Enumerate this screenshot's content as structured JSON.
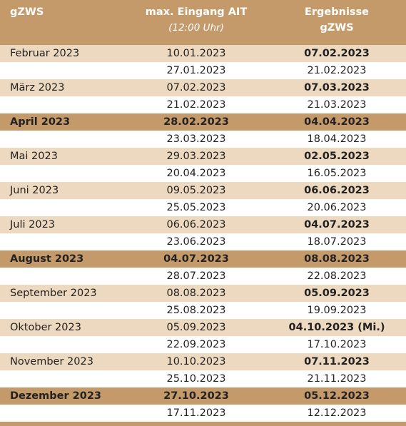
{
  "header": {
    "col1": "gZWS",
    "col2": "max. Eingang AIT",
    "col2_sub": "(12:00 Uhr)",
    "col3_line1": "Ergebnisse",
    "col3_line2": "gZWS"
  },
  "rows": [
    {
      "month": "Februar 2023",
      "highlight": false,
      "entries": [
        {
          "eingang": "10.01.2023",
          "ergebnis": "07.02.2023"
        },
        {
          "eingang": "27.01.2023",
          "ergebnis": "21.02.2023"
        }
      ]
    },
    {
      "month": "März 2023",
      "highlight": false,
      "entries": [
        {
          "eingang": "07.02.2023",
          "ergebnis": "07.03.2023"
        },
        {
          "eingang": "21.02.2023",
          "ergebnis": "21.03.2023"
        }
      ]
    },
    {
      "month": "April 2023",
      "highlight": true,
      "entries": [
        {
          "eingang": "28.02.2023",
          "ergebnis": "04.04.2023"
        },
        {
          "eingang": "23.03.2023",
          "ergebnis": "18.04.2023"
        }
      ]
    },
    {
      "month": "Mai 2023",
      "highlight": false,
      "entries": [
        {
          "eingang": "29.03.2023",
          "ergebnis": "02.05.2023"
        },
        {
          "eingang": "20.04.2023",
          "ergebnis": "16.05.2023"
        }
      ]
    },
    {
      "month": "Juni 2023",
      "highlight": false,
      "entries": [
        {
          "eingang": "09.05.2023",
          "ergebnis": "06.06.2023"
        },
        {
          "eingang": "25.05.2023",
          "ergebnis": "20.06.2023"
        }
      ]
    },
    {
      "month": "Juli 2023",
      "highlight": false,
      "entries": [
        {
          "eingang": "06.06.2023",
          "ergebnis": "04.07.2023"
        },
        {
          "eingang": "23.06.2023",
          "ergebnis": "18.07.2023"
        }
      ]
    },
    {
      "month": "August 2023",
      "highlight": true,
      "entries": [
        {
          "eingang": "04.07.2023",
          "ergebnis": "08.08.2023"
        },
        {
          "eingang": "28.07.2023",
          "ergebnis": "22.08.2023"
        }
      ]
    },
    {
      "month": "September 2023",
      "highlight": false,
      "entries": [
        {
          "eingang": "08.08.2023",
          "ergebnis": "05.09.2023"
        },
        {
          "eingang": "25.08.2023",
          "ergebnis": "19.09.2023"
        }
      ]
    },
    {
      "month": "Oktober 2023",
      "highlight": false,
      "entries": [
        {
          "eingang": "05.09.2023",
          "ergebnis": "04.10.2023 (Mi.)"
        },
        {
          "eingang": "22.09.2023",
          "ergebnis": "17.10.2023"
        }
      ]
    },
    {
      "month": "November 2023",
      "highlight": false,
      "entries": [
        {
          "eingang": "10.10.2023",
          "ergebnis": "07.11.2023"
        },
        {
          "eingang": "25.10.2023",
          "ergebnis": "21.11.2023"
        }
      ]
    },
    {
      "month": "Dezember 2023",
      "highlight": true,
      "entries": [
        {
          "eingang": "27.10.2023",
          "ergebnis": "05.12.2023"
        },
        {
          "eingang": "17.11.2023",
          "ergebnis": "12.12.2023"
        }
      ]
    }
  ],
  "colors": {
    "header_bg": "#c49a6a",
    "stripe_bg": "#ecd9bf",
    "highlight_bg": "#c49a6a"
  }
}
